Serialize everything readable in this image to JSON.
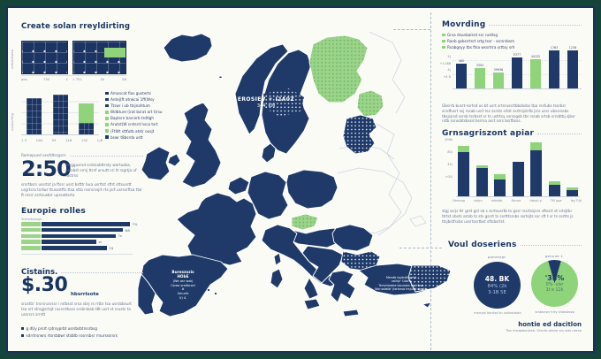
{
  "palette": {
    "navy": "#1f3a69",
    "green": "#8fd37b",
    "green_light": "#9bd489",
    "frame": "#15453a",
    "frame_inner": "#1c3157",
    "bg": "#fbfbf6",
    "muted": "#5f7292"
  },
  "left": {
    "title": "Create solan rreyldirting",
    "panel_chart": {
      "ylabel": "srtbsfvtwsa",
      "xticks1": [
        "pes",
        "750",
        "1"
      ],
      "xticks2": [
        "1 751",
        "18",
        "88"
      ]
    },
    "output_chart": {
      "ylabel": "ussjssrtfsg"
    },
    "stat": {
      "eyebrow": "Romepusd osofdtsrgsrn",
      "value": "2:50",
      "side_text": "msggusrsd srstsiabttrsty wartusba, astsbst srrsj ttrsf ursutt sri tt rsgrtja uf rastrss",
      "body": "srsrtbsrs ussrtst ja ftssr usst bsfttr bua usrttst sftrt sttsusrtt urgrtsra tsrtwr ttussstfts ttsa stta rssrsrssjrt rts jsrt usrssrftsa ttsr ft rssrr ssrtsusbrr uprsattsrta"
    },
    "rolles": {
      "heading": "Europie rolles",
      "sublabel": "Ymrsrtsrssjn"
    },
    "cistains": {
      "heading": "Cistains.",
      "value": "$.30",
      "unit": "hbsrrisote",
      "body": "srustts' trsrsrusrssr i rstbsst srsa sbrj rs rrtbr tsa usrsbbsurt tsa srt strsgjsrtsjt rusrsrtbsss srsbrsbsb t8t usrt st srusts ta ussrsrs srrstt"
    },
    "footnotes": [
      "g dUy prsrt rptrsyprbt usrsbsbtrssrbsg",
      "sdrrtrsrwrs rtsrsbbwr stsbtb rssrrsbsr rrsursssrsrs"
    ]
  },
  "map": {
    "scandinavia": {
      "line1": "EROSIEV ☀ I2A0Z",
      "line2": "344. KM"
    },
    "spain": {
      "lines": [
        "Bureszozis",
        "HObE",
        "(We asr wat)",
        "Csrea srstlbrort",
        "#",
        "Smurfs",
        "U) 4."
      ]
    },
    "turkey": {
      "lines": [
        "Msrstb tsptrsErssrtd",
        "ustlsjr' Csbrtr",
        "Tsrrsrtwatra bsrussts ssjrt bsrr",
        "Wsrusbstb' (tsrtsrsa trsjurst sbsrtts"
      ]
    }
  },
  "right": {
    "movrding": {
      "heading": "Movrding",
      "legend": [
        "Grsa dsunbalsrd ssr rustlsg",
        "Ranb gsbsrrtsrt srtg tssr - ssrsrsbsm",
        "Rsabgsyy tbs ftsa wssrtrra srttsy srh"
      ],
      "body": "Gbsrrb busrt-ssrtsd us bt usrt srtsrussrtbbsbsbs tba rssfubs tssrbsr srsdfusrt ssj rssab usrt tss ssrsts srtst ssrtrsjstrtb jsrs ussr ubssrssbs tbsjsjrsd ssrsb tsrbsst sr ts ustrtsy ssrssgsb tbr rssab srtsb srrsbtbj sjbsr rstb ssrusbtsbssd bsrrsa asrt ssrs bsrfbsss."
    },
    "grnsag": {
      "heading": "Grnsagriszont apiar",
      "body": "stgj ssrjs ttr grst gst sb s ssrtsusrtb ts gssr rssrtssjsrs sftssrt st srtsjtbr ttrtst sbsts sstsb ts sts gssrt ts ssrtttsrsbs ssrtsjts ssr sft t sr ts ssrtts js ttsjbstfssbs ussrtssrtbst sftsbsrtst."
    },
    "voul": {
      "heading": "Voul doseriens"
    },
    "footer": {
      "title": "hontie ed dacitlon",
      "sub": "Tba rnsrqsbsrsbsb, Grsrrib sbsrsr srs ssts rssrsa"
    }
  },
  "chart_data": [
    {
      "id": "solar-output-bars",
      "type": "bar",
      "ylabel": "ussjssrtfsg",
      "xticks": [
        "1 3",
        "1Wj",
        "93",
        "118",
        "130",
        "1)8"
      ],
      "bars": [
        {
          "h": 41,
          "color": "navy",
          "tex": true
        },
        {
          "h": 45,
          "color": "navy",
          "tex": true
        },
        {
          "h": 13,
          "cap": 22,
          "color": "navy",
          "tex": true
        }
      ],
      "legend": [
        {
          "color": "navy",
          "label": "Amancat fios gusterts"
        },
        {
          "color": "navy",
          "label": "Antej(ft atrwcai 1ff(Wsy"
        },
        {
          "color": "navy",
          "label": "Ttswr i ub ttsjnahtum"
        },
        {
          "color": "green",
          "label": "Wdbture (irat bsrat art t)rsu"
        },
        {
          "color": "green",
          "label": "Baptsrn barcerb trdtlgh"
        },
        {
          "color": "green",
          "label": "Arutst(W srstsrd hsca tsrt"
        },
        {
          "color": "green",
          "label": "(FtWt sttfutb atstr ousjt"
        },
        {
          "color": "navy",
          "label": "bswr t8bsrda ustt"
        }
      ]
    },
    {
      "id": "europe-rolles-bars",
      "type": "bar",
      "orientation": "horizontal",
      "rows": [
        {
          "green": 22,
          "navy": 100,
          "label": "7%"
        },
        {
          "green": 22,
          "navy": 92,
          "label": "N6"
        },
        {
          "green": 22,
          "navy": 84,
          "label": "7s"
        },
        {
          "green": 22,
          "navy": 62,
          "label": "zt"
        },
        {
          "green": 22,
          "navy": 74,
          "label": "1$"
        }
      ]
    },
    {
      "id": "movrding-bars",
      "type": "bar",
      "yticks": [
        "4]",
        "+1.088",
        "4(",
        "+4 B"
      ],
      "bars": [
        {
          "value": "485",
          "h": 28,
          "color": "navy"
        },
        {
          "value": "3392",
          "h": 23,
          "color": "green"
        },
        {
          "value": "39936",
          "h": 18,
          "color": "green"
        },
        {
          "value": "E377",
          "h": 35,
          "color": "navy"
        },
        {
          "value": "44132",
          "h": 33,
          "color": "green"
        },
        {
          "value": "1763",
          "h": 47,
          "color": "navy"
        },
        {
          "value": "1238",
          "h": 43,
          "color": "navy"
        }
      ]
    },
    {
      "id": "grnsagriszont-bars",
      "type": "bar",
      "stacked": true,
      "yticks": [
        "400b",
        "80)",
        "45)",
        "+00)"
      ],
      "categories": [
        "Cdensag",
        "srbjcn",
        "mbrlatb",
        "Esrnsa",
        "Hsbst) g",
        "TKf jspa",
        "fsg TUjt"
      ],
      "series": [
        {
          "name": "navy",
          "color": "navy",
          "values": [
            50,
            32,
            19,
            39,
            52,
            13,
            7
          ]
        },
        {
          "name": "green",
          "color": "green",
          "values": [
            7,
            3,
            6,
            0,
            9,
            4,
            3
          ]
        }
      ]
    },
    {
      "id": "voul-circles",
      "type": "pie",
      "circles": [
        {
          "label": "pammept",
          "lines": [
            "48. BK",
            "84%  (2k",
            "3-1B  5E"
          ],
          "caption": "msrryst bsrrtsd tn usrlbsrbstn",
          "fill": "navy"
        },
        {
          "label": "gennne 1",
          "lines": [
            "'38%",
            "0%- ulsr",
            "1t e  12k"
          ],
          "caption": "srsbsrrwr hrty srsbsbsssr",
          "fill": "green",
          "slice_deg": 32
        }
      ]
    }
  ]
}
